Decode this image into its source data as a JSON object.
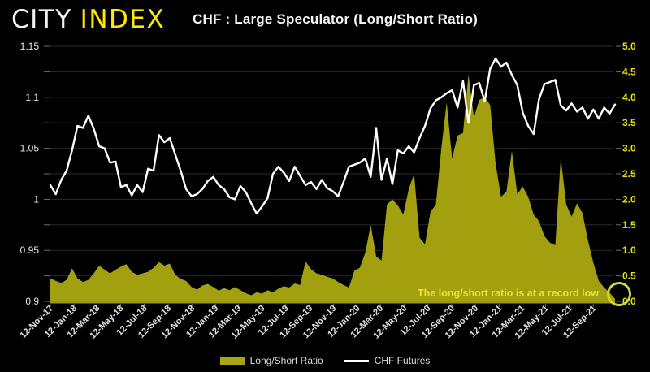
{
  "header": {
    "logo_primary": "CITY",
    "logo_accent": "INDEX",
    "title": "CHF : Large Speculator (Long/Short Ratio)"
  },
  "legend": {
    "items": [
      {
        "label": "Long/Short Ratio",
        "type": "area",
        "color": "#a8a414"
      },
      {
        "label": "CHF Futures",
        "type": "line",
        "color": "#ffffff"
      }
    ]
  },
  "chart_data": {
    "type": "combo",
    "title": "CHF : Large Speculator (Long/Short Ratio)",
    "grid": true,
    "legend_position": "bottom",
    "background": "#000000",
    "gridline_color": "#282828",
    "axis_bar_color": "#9a980f",
    "start_label": "12-Nov-17",
    "point_interval_days": 14,
    "x_tick_labels": [
      "12-Nov-17",
      "12-Jan-18",
      "12-Mar-18",
      "12-May-18",
      "12-Jul-18",
      "12-Sep-18",
      "12-Nov-18",
      "12-Jan-19",
      "12-Mar-19",
      "12-May-19",
      "12-Jul-19",
      "12-Sep-19",
      "12-Nov-19",
      "12-Jan-20",
      "12-Mar-20",
      "12-May-20",
      "12-Jul-20",
      "12-Sep-20",
      "12-Nov-20",
      "12-Jan-21",
      "12-Mar-21",
      "12-May-21",
      "12-Jul-21",
      "12-Sep-21"
    ],
    "x_tick_day_offsets": [
      0,
      61,
      120,
      181,
      242,
      304,
      365,
      426,
      485,
      546,
      607,
      669,
      730,
      791,
      851,
      912,
      973,
      1035,
      1096,
      1157,
      1216,
      1277,
      1338,
      1400
    ],
    "left_axis": {
      "min": 0.9,
      "max": 1.15,
      "ticks": [
        "1.15",
        "1.1",
        "1.05",
        "1",
        "0.95",
        "0.9"
      ],
      "label_color": "#e6e6e6"
    },
    "right_axis": {
      "min": 0,
      "max": 5,
      "ticks": [
        "5.0",
        "4.5",
        "4.0",
        "3.5",
        "3.0",
        "2.5",
        "2.0",
        "1.5",
        "1.0",
        "0.5",
        "0.0"
      ],
      "label_color": "#e5e100"
    },
    "series": [
      {
        "name": "Long/Short Ratio",
        "type": "area",
        "axis": "right",
        "color": "#a2a00f",
        "values": [
          0.45,
          0.4,
          0.36,
          0.42,
          0.65,
          0.45,
          0.38,
          0.42,
          0.55,
          0.7,
          0.62,
          0.55,
          0.62,
          0.68,
          0.73,
          0.58,
          0.52,
          0.55,
          0.58,
          0.66,
          0.77,
          0.7,
          0.74,
          0.52,
          0.44,
          0.4,
          0.28,
          0.23,
          0.31,
          0.34,
          0.28,
          0.21,
          0.26,
          0.22,
          0.28,
          0.22,
          0.16,
          0.12,
          0.18,
          0.15,
          0.22,
          0.18,
          0.25,
          0.3,
          0.27,
          0.35,
          0.32,
          0.78,
          0.63,
          0.55,
          0.52,
          0.48,
          0.45,
          0.38,
          0.32,
          0.27,
          0.6,
          0.66,
          0.95,
          1.5,
          0.88,
          0.8,
          1.9,
          2.0,
          1.88,
          1.7,
          2.2,
          2.5,
          1.25,
          1.12,
          1.75,
          1.9,
          3.0,
          3.9,
          2.8,
          3.25,
          3.3,
          4.45,
          3.6,
          3.95,
          4.0,
          3.85,
          2.7,
          2.05,
          2.15,
          2.95,
          2.1,
          2.25,
          2.05,
          1.7,
          1.57,
          1.28,
          1.15,
          1.1,
          2.82,
          1.9,
          1.66,
          1.92,
          1.73,
          1.2,
          0.76,
          0.4,
          0.27,
          0.17,
          0.05
        ]
      },
      {
        "name": "CHF Futures",
        "type": "line",
        "axis": "left",
        "color": "#ffffff",
        "values": [
          1.014,
          1.005,
          1.019,
          1.028,
          1.048,
          1.072,
          1.07,
          1.082,
          1.069,
          1.052,
          1.05,
          1.036,
          1.037,
          1.012,
          1.014,
          1.004,
          1.014,
          1.007,
          1.03,
          1.028,
          1.063,
          1.056,
          1.06,
          1.044,
          1.028,
          1.01,
          1.003,
          1.005,
          1.01,
          1.018,
          1.022,
          1.014,
          1.01,
          1.002,
          1.0,
          1.013,
          1.007,
          0.996,
          0.986,
          0.993,
          1.001,
          1.025,
          1.032,
          1.026,
          1.018,
          1.032,
          1.023,
          1.014,
          1.017,
          1.01,
          1.019,
          1.011,
          1.008,
          1.003,
          1.017,
          1.032,
          1.034,
          1.036,
          1.04,
          1.022,
          1.07,
          1.019,
          1.04,
          1.015,
          1.048,
          1.045,
          1.052,
          1.046,
          1.06,
          1.072,
          1.089,
          1.097,
          1.1,
          1.104,
          1.107,
          1.09,
          1.116,
          1.075,
          1.112,
          1.114,
          1.096,
          1.128,
          1.138,
          1.13,
          1.134,
          1.122,
          1.112,
          1.085,
          1.072,
          1.064,
          1.098,
          1.113,
          1.115,
          1.117,
          1.092,
          1.087,
          1.094,
          1.086,
          1.09,
          1.079,
          1.088,
          1.079,
          1.09,
          1.084,
          1.093
        ]
      }
    ],
    "annotation": {
      "text": "The long/short ratio is at a record low",
      "color": "#e9e435",
      "circle_color": "#ccd835"
    }
  }
}
